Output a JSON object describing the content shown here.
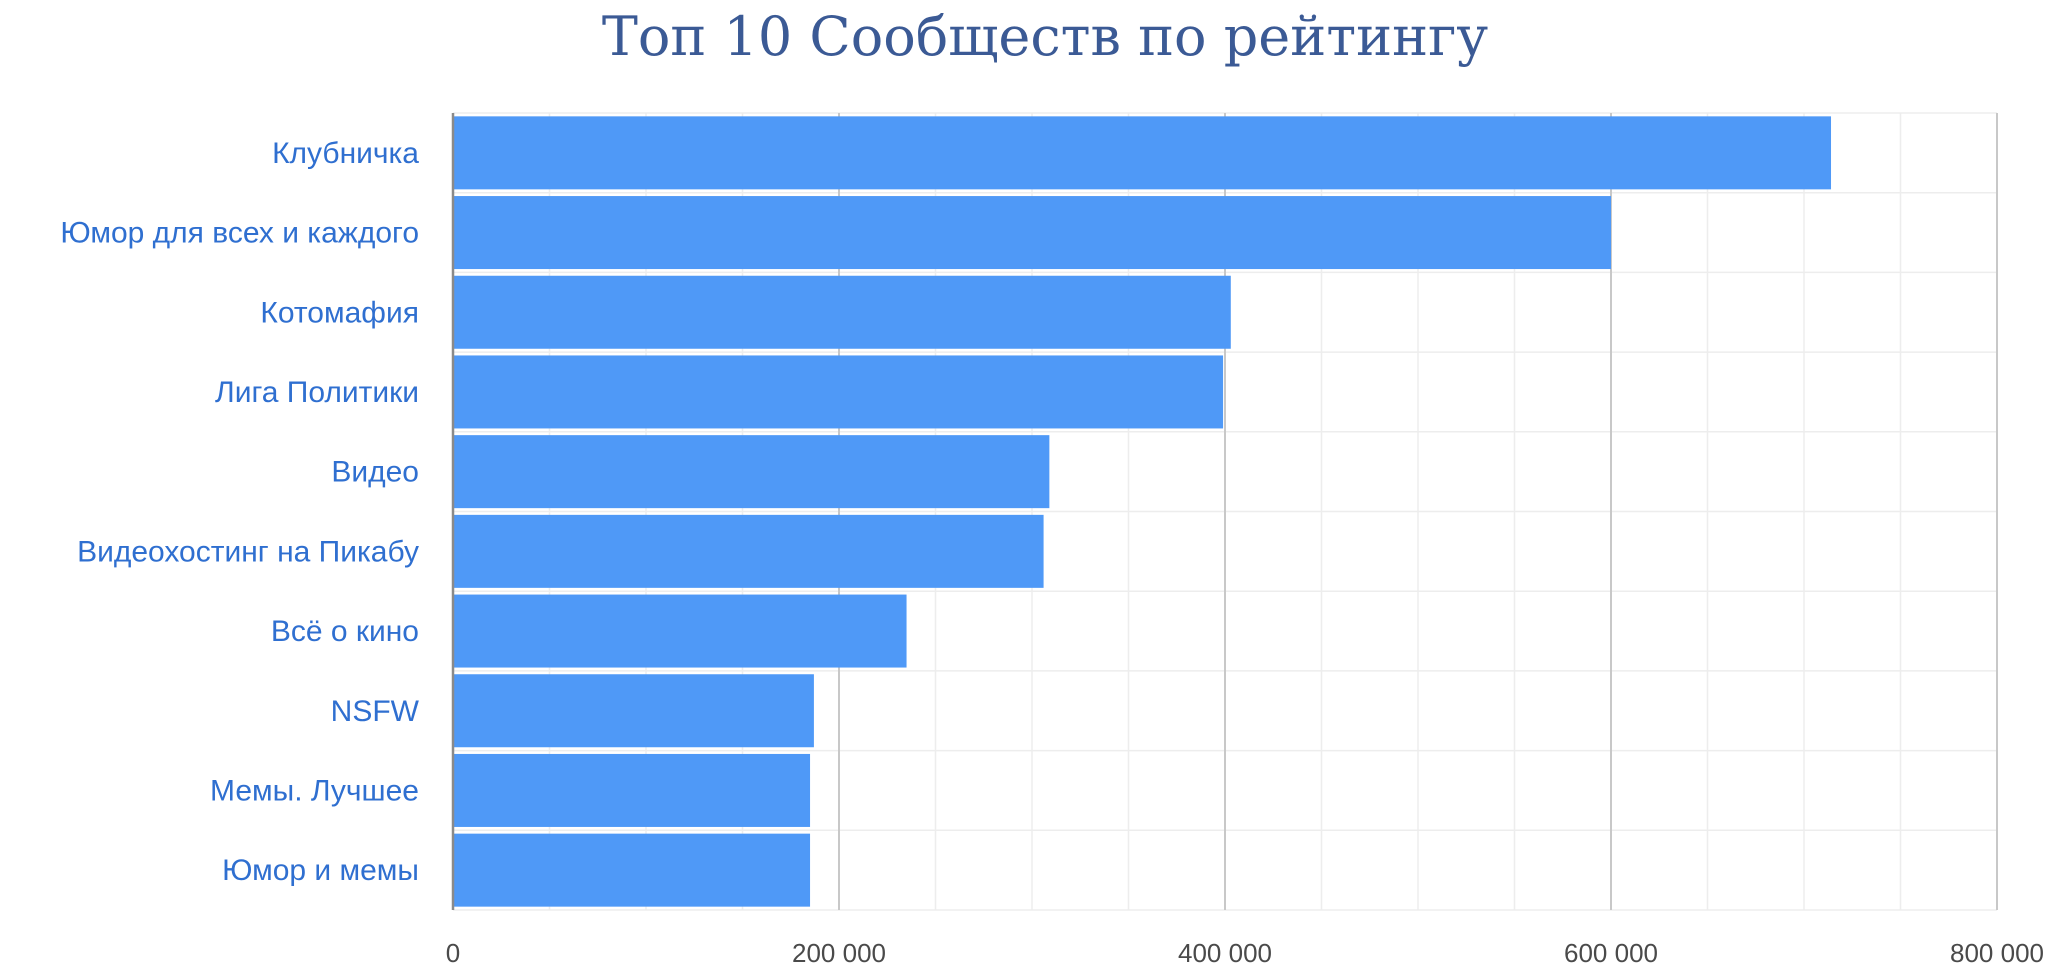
{
  "chart_data": {
    "type": "bar",
    "orientation": "horizontal",
    "title": "Топ 10 Сообществ по рейтингу",
    "categories": [
      "Клубничка",
      "Юмор для всех и каждого",
      "Котомафия",
      "Лига Политики",
      "Видео",
      "Видеохостинг на Пикабу",
      "Всё о кино",
      "NSFW",
      "Мемы. Лучшее",
      "Юмор и мемы"
    ],
    "values": [
      714000,
      600000,
      403000,
      399000,
      309000,
      306000,
      235000,
      187000,
      185000,
      185000
    ],
    "xlim": [
      0,
      800000
    ],
    "xticks": [
      0,
      200000,
      400000,
      600000,
      800000
    ],
    "xtick_labels": [
      "0",
      "200 000",
      "400 000",
      "600 000",
      "800 000"
    ],
    "xlabel": "",
    "ylabel": "",
    "grid": true,
    "legend": "none",
    "colors": {
      "bar": "#4f99f7",
      "title": "#3b5a95",
      "category_label": "#2f6fd0",
      "tick_label": "#4a4a4a",
      "major_grid": "#c8c8c8",
      "minor_grid": "#ededed",
      "axis": "#8a8a8a"
    }
  }
}
